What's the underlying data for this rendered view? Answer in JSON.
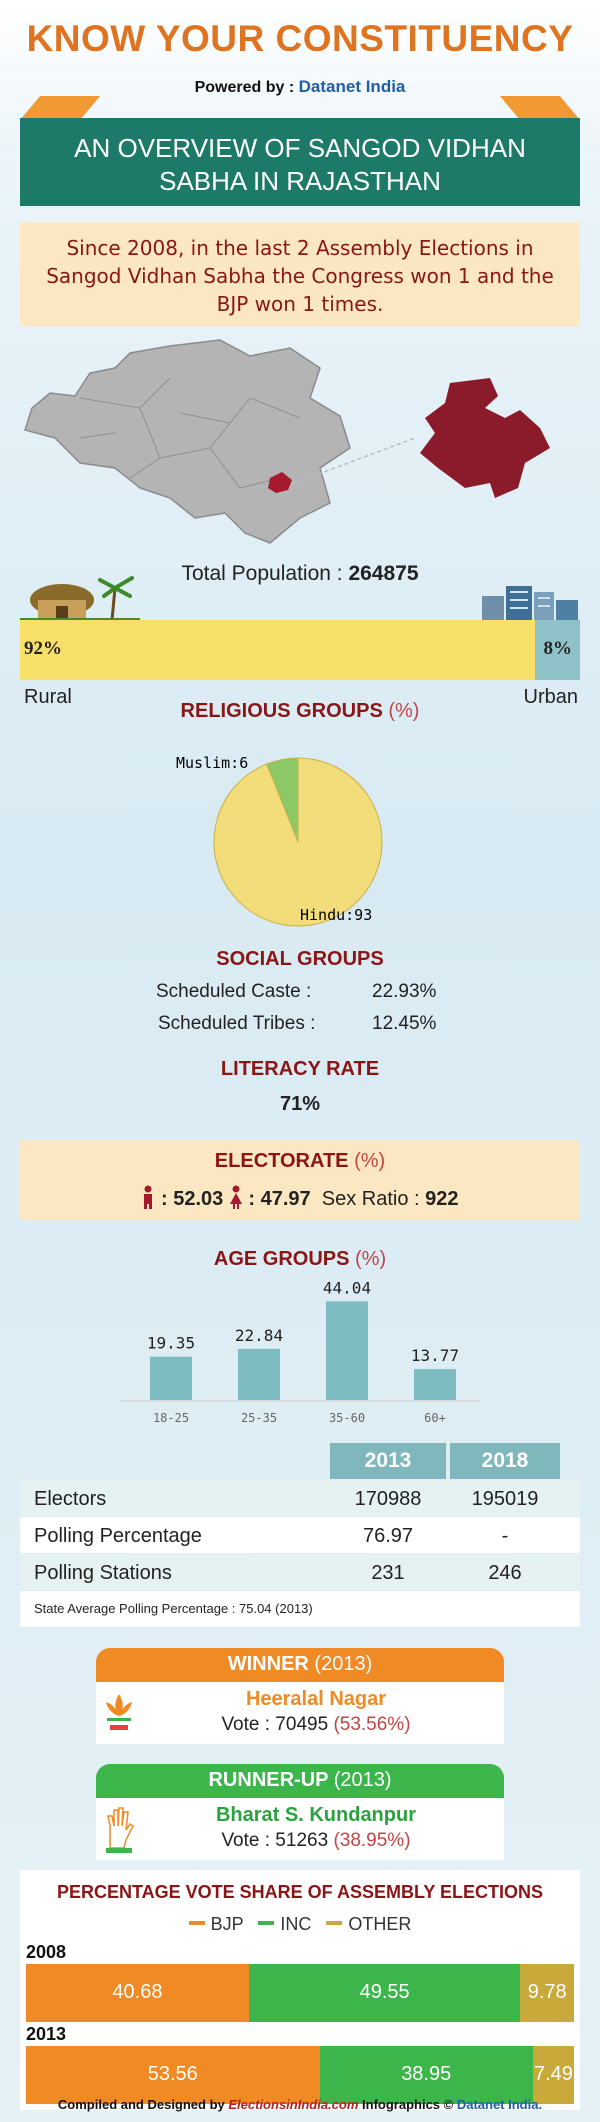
{
  "header": {
    "title": "KNOW YOUR CONSTITUENCY",
    "powered_prefix": "Powered by : ",
    "powered_brand": "Datanet India",
    "ribbon_line1": "AN OVERVIEW OF SANGOD VIDHAN",
    "ribbon_line2": "SABHA IN RAJASTHAN"
  },
  "summary": "Since 2008, in the last 2 Assembly Elections in Sangod Vidhan Sabha the Congress won 1 and the BJP won 1 times.",
  "population": {
    "label": "Total Population : ",
    "value": "264875",
    "rural_pct": 92,
    "urban_pct": 8,
    "rural_text": "92%",
    "urban_text": "8%",
    "rural_label": "Rural",
    "urban_label": "Urban"
  },
  "religious": {
    "heading": "RELIGIOUS GROUPS",
    "unit": "(%)",
    "muslim_label": "Muslim:6",
    "hindu_label": "Hindu:93"
  },
  "social": {
    "heading": "SOCIAL GROUPS",
    "sc_label": "Scheduled Caste :",
    "sc_value": "22.93%",
    "st_label": "Scheduled Tribes :",
    "st_value": "12.45%"
  },
  "literacy": {
    "heading": "LITERACY RATE",
    "value": "71%"
  },
  "electorate": {
    "heading": "ELECTORATE",
    "unit": "(%)",
    "male": ": 52.03",
    "female": ": 47.97",
    "sex_ratio_label": "Sex Ratio : ",
    "sex_ratio_value": "922"
  },
  "age": {
    "heading": "AGE GROUPS",
    "unit": "(%)"
  },
  "table": {
    "years": [
      "2013",
      "2018"
    ],
    "rows": [
      {
        "label": "Electors",
        "v2013": "170988",
        "v2018": "195019"
      },
      {
        "label": "Polling Percentage",
        "v2013": "76.97",
        "v2018": "-"
      },
      {
        "label": "Polling Stations",
        "v2013": "231",
        "v2018": "246"
      }
    ],
    "note": "State Average Polling Percentage : 75.04 (2013)"
  },
  "winner": {
    "head": "WINNER",
    "year": "(2013)",
    "name": "Heeralal Nagar",
    "vote_text": "Vote : 70495 ",
    "vote_pct": "(53.56%)"
  },
  "runner": {
    "head": "RUNNER-UP",
    "year": "(2013)",
    "name": "Bharat S. Kundanpur",
    "vote_text": "Vote : 51263 ",
    "vote_pct": "(38.95%)"
  },
  "vote_share": {
    "heading": "PERCENTAGE VOTE SHARE OF ASSEMBLY ELECTIONS",
    "legend": [
      "BJP",
      "INC",
      "OTHER"
    ]
  },
  "footer": {
    "prefix": "Compiled and Designed by ",
    "site": "ElectionsinIndia.com",
    "middle": " Infographics © ",
    "brand": "Datanet India."
  },
  "colors": {
    "bjp": "#f08a24",
    "inc": "#3cb54a",
    "other": "#c9a93a",
    "accent": "#8b1515",
    "teal": "#1e7a68"
  },
  "chart_data": [
    {
      "type": "pie",
      "title": "RELIGIOUS GROUPS (%)",
      "categories": [
        "Hindu",
        "Muslim"
      ],
      "values": [
        93,
        6
      ]
    },
    {
      "type": "bar",
      "title": "AGE GROUPS (%)",
      "categories": [
        "18-25",
        "25-35",
        "35-60",
        "60+"
      ],
      "values": [
        19.35,
        22.84,
        44.04,
        13.77
      ],
      "ylim": [
        0,
        50
      ],
      "grid": false
    },
    {
      "type": "bar",
      "title": "PERCENTAGE VOTE SHARE OF ASSEMBLY ELECTIONS",
      "stacked": true,
      "horizontal": true,
      "categories": [
        "2008",
        "2013"
      ],
      "series": [
        {
          "name": "BJP",
          "values": [
            40.68,
            53.56
          ]
        },
        {
          "name": "INC",
          "values": [
            49.55,
            38.95
          ]
        },
        {
          "name": "OTHER",
          "values": [
            9.78,
            7.49
          ]
        }
      ]
    }
  ]
}
